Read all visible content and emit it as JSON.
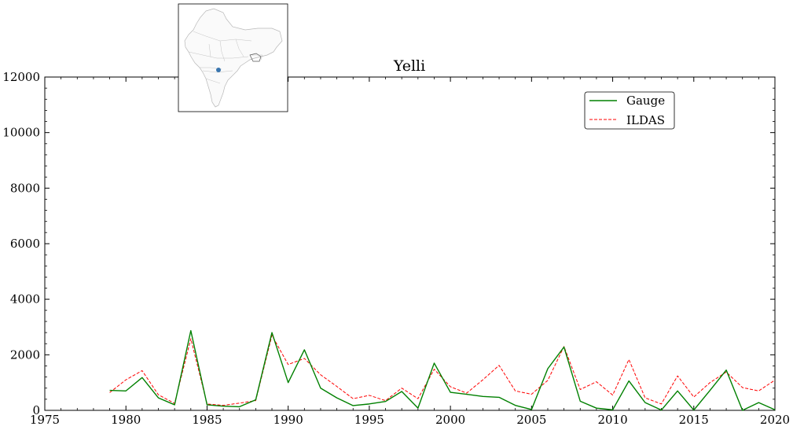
{
  "chart_data": {
    "type": "line",
    "title": "Yelli",
    "xlabel": "",
    "ylabel": "",
    "xlim": [
      1975,
      2020
    ],
    "ylim": [
      0,
      12000
    ],
    "xticks": [
      1975,
      1980,
      1985,
      1990,
      1995,
      2000,
      2005,
      2010,
      2015,
      2020
    ],
    "yticks": [
      0,
      2000,
      4000,
      6000,
      8000,
      10000,
      12000
    ],
    "legend_position": "top-right",
    "grid": false,
    "x": [
      1979,
      1980,
      1981,
      1982,
      1983,
      1984,
      1985,
      1986,
      1987,
      1988,
      1989,
      1990,
      1991,
      1992,
      1993,
      1994,
      1995,
      1996,
      1997,
      1998,
      1999,
      2000,
      2001,
      2002,
      2003,
      2004,
      2005,
      2006,
      2007,
      2008,
      2009,
      2010,
      2011,
      2012,
      2013,
      2014,
      2015,
      2016,
      2017,
      2018,
      2019,
      2020
    ],
    "series": [
      {
        "name": "Gauge",
        "color": "#008000",
        "style": "solid",
        "values": [
          720,
          700,
          1180,
          450,
          200,
          2870,
          200,
          150,
          130,
          380,
          2800,
          1000,
          2180,
          800,
          450,
          170,
          230,
          320,
          680,
          80,
          1700,
          650,
          580,
          500,
          470,
          180,
          30,
          1500,
          2280,
          330,
          80,
          20,
          1060,
          280,
          10,
          700,
          10,
          720,
          1450,
          0,
          280,
          20
        ]
      },
      {
        "name": "ILDAS",
        "color": "#ff0000",
        "style": "dashed",
        "values": [
          640,
          1100,
          1430,
          560,
          250,
          2580,
          230,
          180,
          260,
          350,
          2700,
          1650,
          1870,
          1280,
          860,
          420,
          540,
          350,
          800,
          420,
          1480,
          850,
          620,
          1100,
          1620,
          700,
          580,
          1080,
          2300,
          750,
          1030,
          550,
          1830,
          450,
          230,
          1240,
          480,
          1000,
          1380,
          820,
          700,
          1090
        ]
      }
    ]
  },
  "inset_map": {
    "description_icon": "india-map-icon",
    "marker_color": "#3a76af"
  }
}
